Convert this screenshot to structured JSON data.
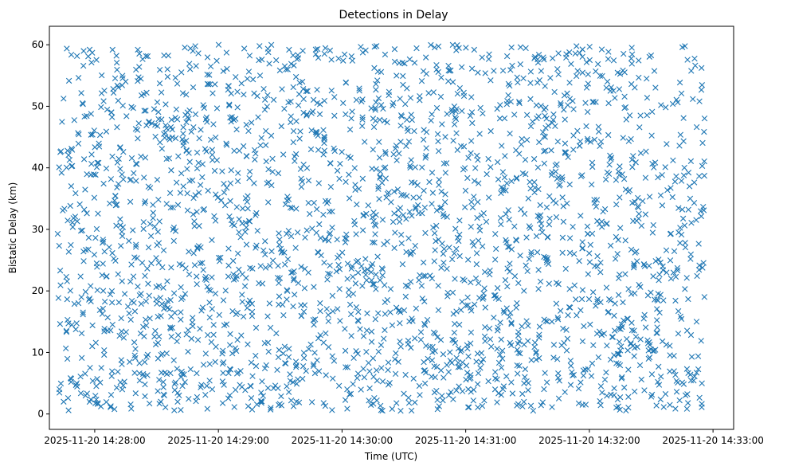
{
  "chart_data": {
    "type": "scatter",
    "title": "Detections in Delay",
    "xlabel": "Time (UTC)",
    "ylabel": "Bistatic Delay (km)",
    "marker": "x",
    "color": "#1f77b4",
    "grid": false,
    "x_unit": "seconds since 2025-11-20 14:28:00",
    "xlim": [
      -22,
      310
    ],
    "ylim": [
      -2.5,
      63
    ],
    "x_ticks": [
      0,
      60,
      120,
      180,
      240,
      300
    ],
    "x_tick_labels": [
      "2025-11-20 14:28:00",
      "2025-11-20 14:29:00",
      "2025-11-20 14:30:00",
      "2025-11-20 14:31:00",
      "2025-11-20 14:32:00",
      "2025-11-20 14:33:00"
    ],
    "y_ticks": [
      0,
      10,
      20,
      30,
      40,
      50,
      60
    ],
    "y_tick_labels": [
      "0",
      "10",
      "20",
      "30",
      "40",
      "50",
      "60"
    ],
    "series": [
      {
        "name": "detections",
        "x_range": [
          -18,
          296
        ],
        "y_range": [
          0.5,
          60
        ],
        "count": 2500,
        "distribution": "approximately uniform random",
        "seed": 1337
      }
    ]
  }
}
